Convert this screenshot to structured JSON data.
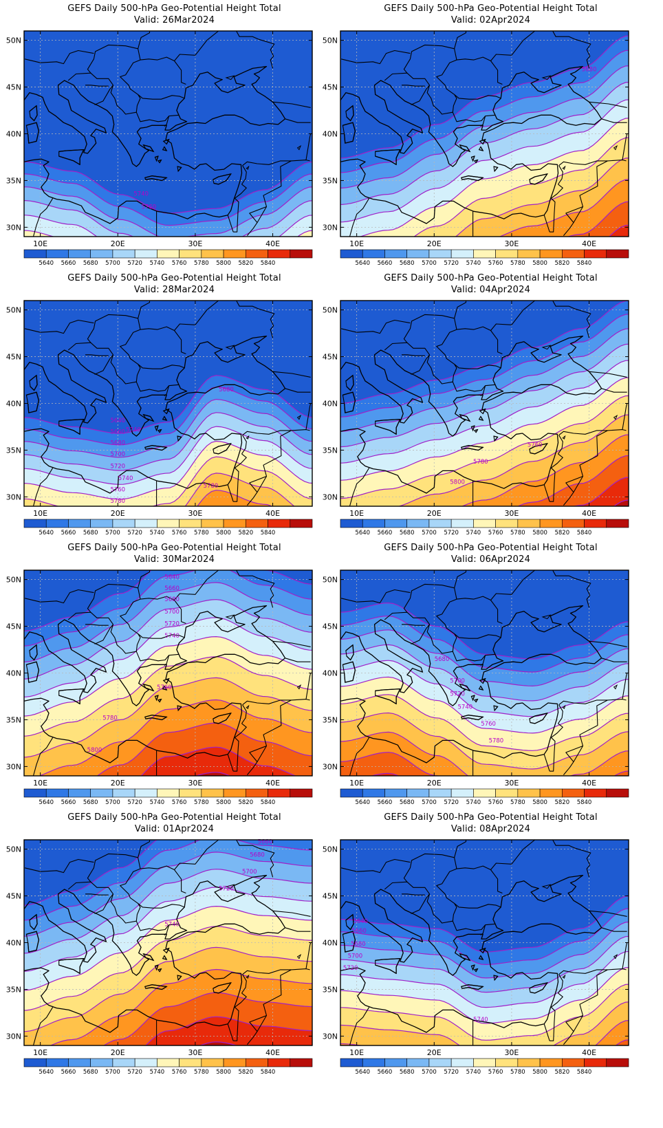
{
  "title_line1": "GEFS Daily 500-hPa Geo-Potential Height Total",
  "colorbar": {
    "colors": [
      "#1e5bd2",
      "#2f78e6",
      "#4f98ee",
      "#7ab8f4",
      "#a8d6f8",
      "#d4f0fb",
      "#fff6b8",
      "#ffe27c",
      "#ffc24a",
      "#ff9620",
      "#f46010",
      "#e82a0a",
      "#b80e0a"
    ],
    "labels": [
      "5640",
      "5660",
      "5680",
      "5700",
      "5720",
      "5740",
      "5760",
      "5780",
      "5800",
      "5820",
      "5840"
    ]
  },
  "axes": {
    "lon_labels": [
      "10E",
      "20E",
      "30E",
      "40E"
    ],
    "lat_labels": [
      "50N",
      "45N",
      "40N",
      "35N",
      "30N"
    ]
  },
  "map_colors": {
    "coast": "#000000",
    "contour": "#a020c8",
    "grid": "#b8b8b8"
  },
  "panels": [
    {
      "valid": "Valid:  26Mar2024",
      "contour_labels": [
        "5740",
        "5760"
      ]
    },
    {
      "valid": "Valid:  02Apr2024",
      "contour_labels": [
        "5680"
      ]
    },
    {
      "valid": "Valid:  28Mar2024",
      "contour_labels": [
        "5640",
        "5660",
        "5680",
        "5700",
        "5720",
        "5740",
        "5760",
        "5780",
        "5680",
        "5740",
        "5780"
      ]
    },
    {
      "valid": "Valid:  04Apr2024",
      "contour_labels": [
        "5760",
        "5780",
        "5800"
      ]
    },
    {
      "valid": "Valid:  30Mar2024",
      "contour_labels": [
        "5640",
        "5660",
        "5680",
        "5700",
        "5720",
        "5740",
        "5760",
        "5780",
        "5800"
      ]
    },
    {
      "valid": "Valid:  06Apr2024",
      "contour_labels": [
        "5680",
        "5700",
        "5720",
        "5740",
        "5760",
        "5780"
      ]
    },
    {
      "valid": "Valid:  01Apr2024",
      "contour_labels": [
        "5660",
        "5680",
        "5700",
        "5720",
        "5740"
      ]
    },
    {
      "valid": "Valid:  08Apr2024",
      "contour_labels": [
        "5640",
        "5660",
        "5680",
        "5700",
        "5720",
        "5740"
      ]
    }
  ]
}
